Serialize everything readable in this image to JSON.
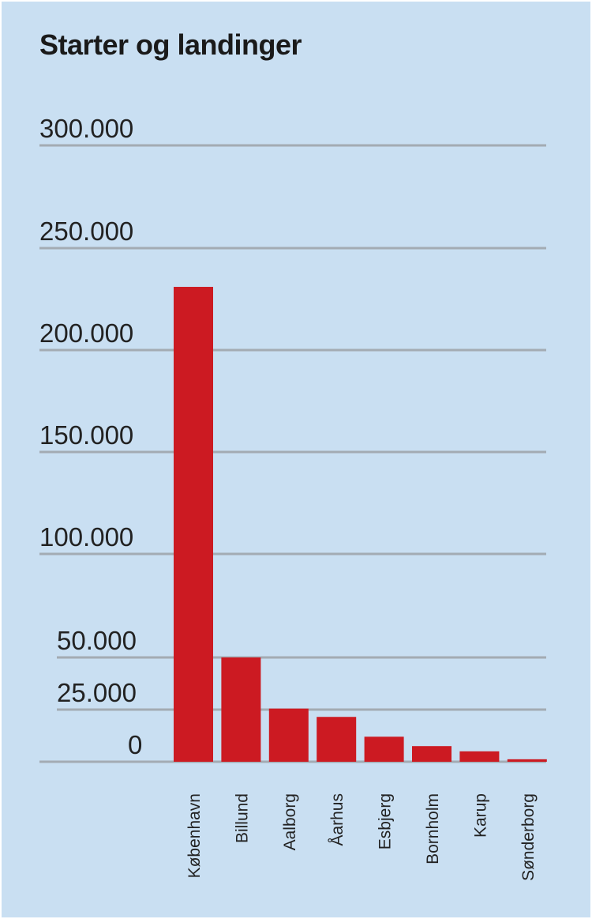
{
  "chart_data": {
    "type": "bar",
    "title": "Starter og landinger",
    "xlabel": "",
    "ylabel": "",
    "categories": [
      "København",
      "Billund",
      "Aalborg",
      "Åarhus",
      "Esbjerg",
      "Bornholm",
      "Karup",
      "Sønderborg"
    ],
    "values": [
      231000,
      50000,
      25500,
      21500,
      12000,
      7500,
      5000,
      1200
    ],
    "yticks": [
      0,
      25000,
      50000,
      100000,
      150000,
      200000,
      250000,
      300000
    ],
    "ytick_labels": [
      "0",
      "25.000",
      "50.000",
      "100.000",
      "150.000",
      "200.000",
      "250.000",
      "300.000"
    ],
    "ylim": [
      0,
      300000
    ],
    "grid": true,
    "colors": {
      "background": "#c9dff2",
      "bar": "#cc1a22",
      "gridline": "#a3abb3",
      "text": "#222222"
    }
  }
}
